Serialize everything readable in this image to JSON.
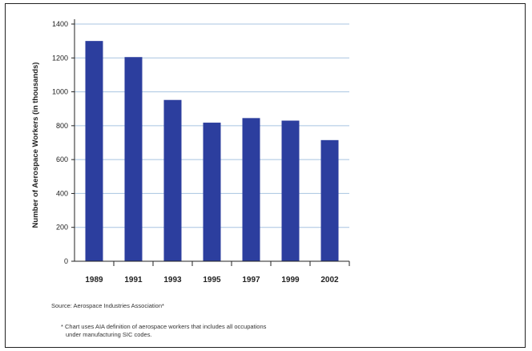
{
  "chart_data": {
    "type": "bar",
    "categories": [
      "1989",
      "1991",
      "1993",
      "1995",
      "1997",
      "1999",
      "2002"
    ],
    "values": [
      1300,
      1205,
      952,
      818,
      845,
      830,
      715
    ],
    "title": "",
    "xlabel": "",
    "ylabel": "Number of Aerospace Workers (in thousands)",
    "ylim": [
      0,
      1400
    ],
    "yticks": [
      0,
      200,
      400,
      600,
      800,
      1000,
      1200,
      1400
    ],
    "grid": true,
    "bar_color": "#2c3e9e",
    "grid_color": "#a8c4e0"
  },
  "notes": {
    "source": "Source: Aerospace Industries Association*",
    "footnote_line1": "* Chart uses AIA definition of aerospace workers that includes all occupations",
    "footnote_line2": "under manufacturing SIC codes."
  }
}
